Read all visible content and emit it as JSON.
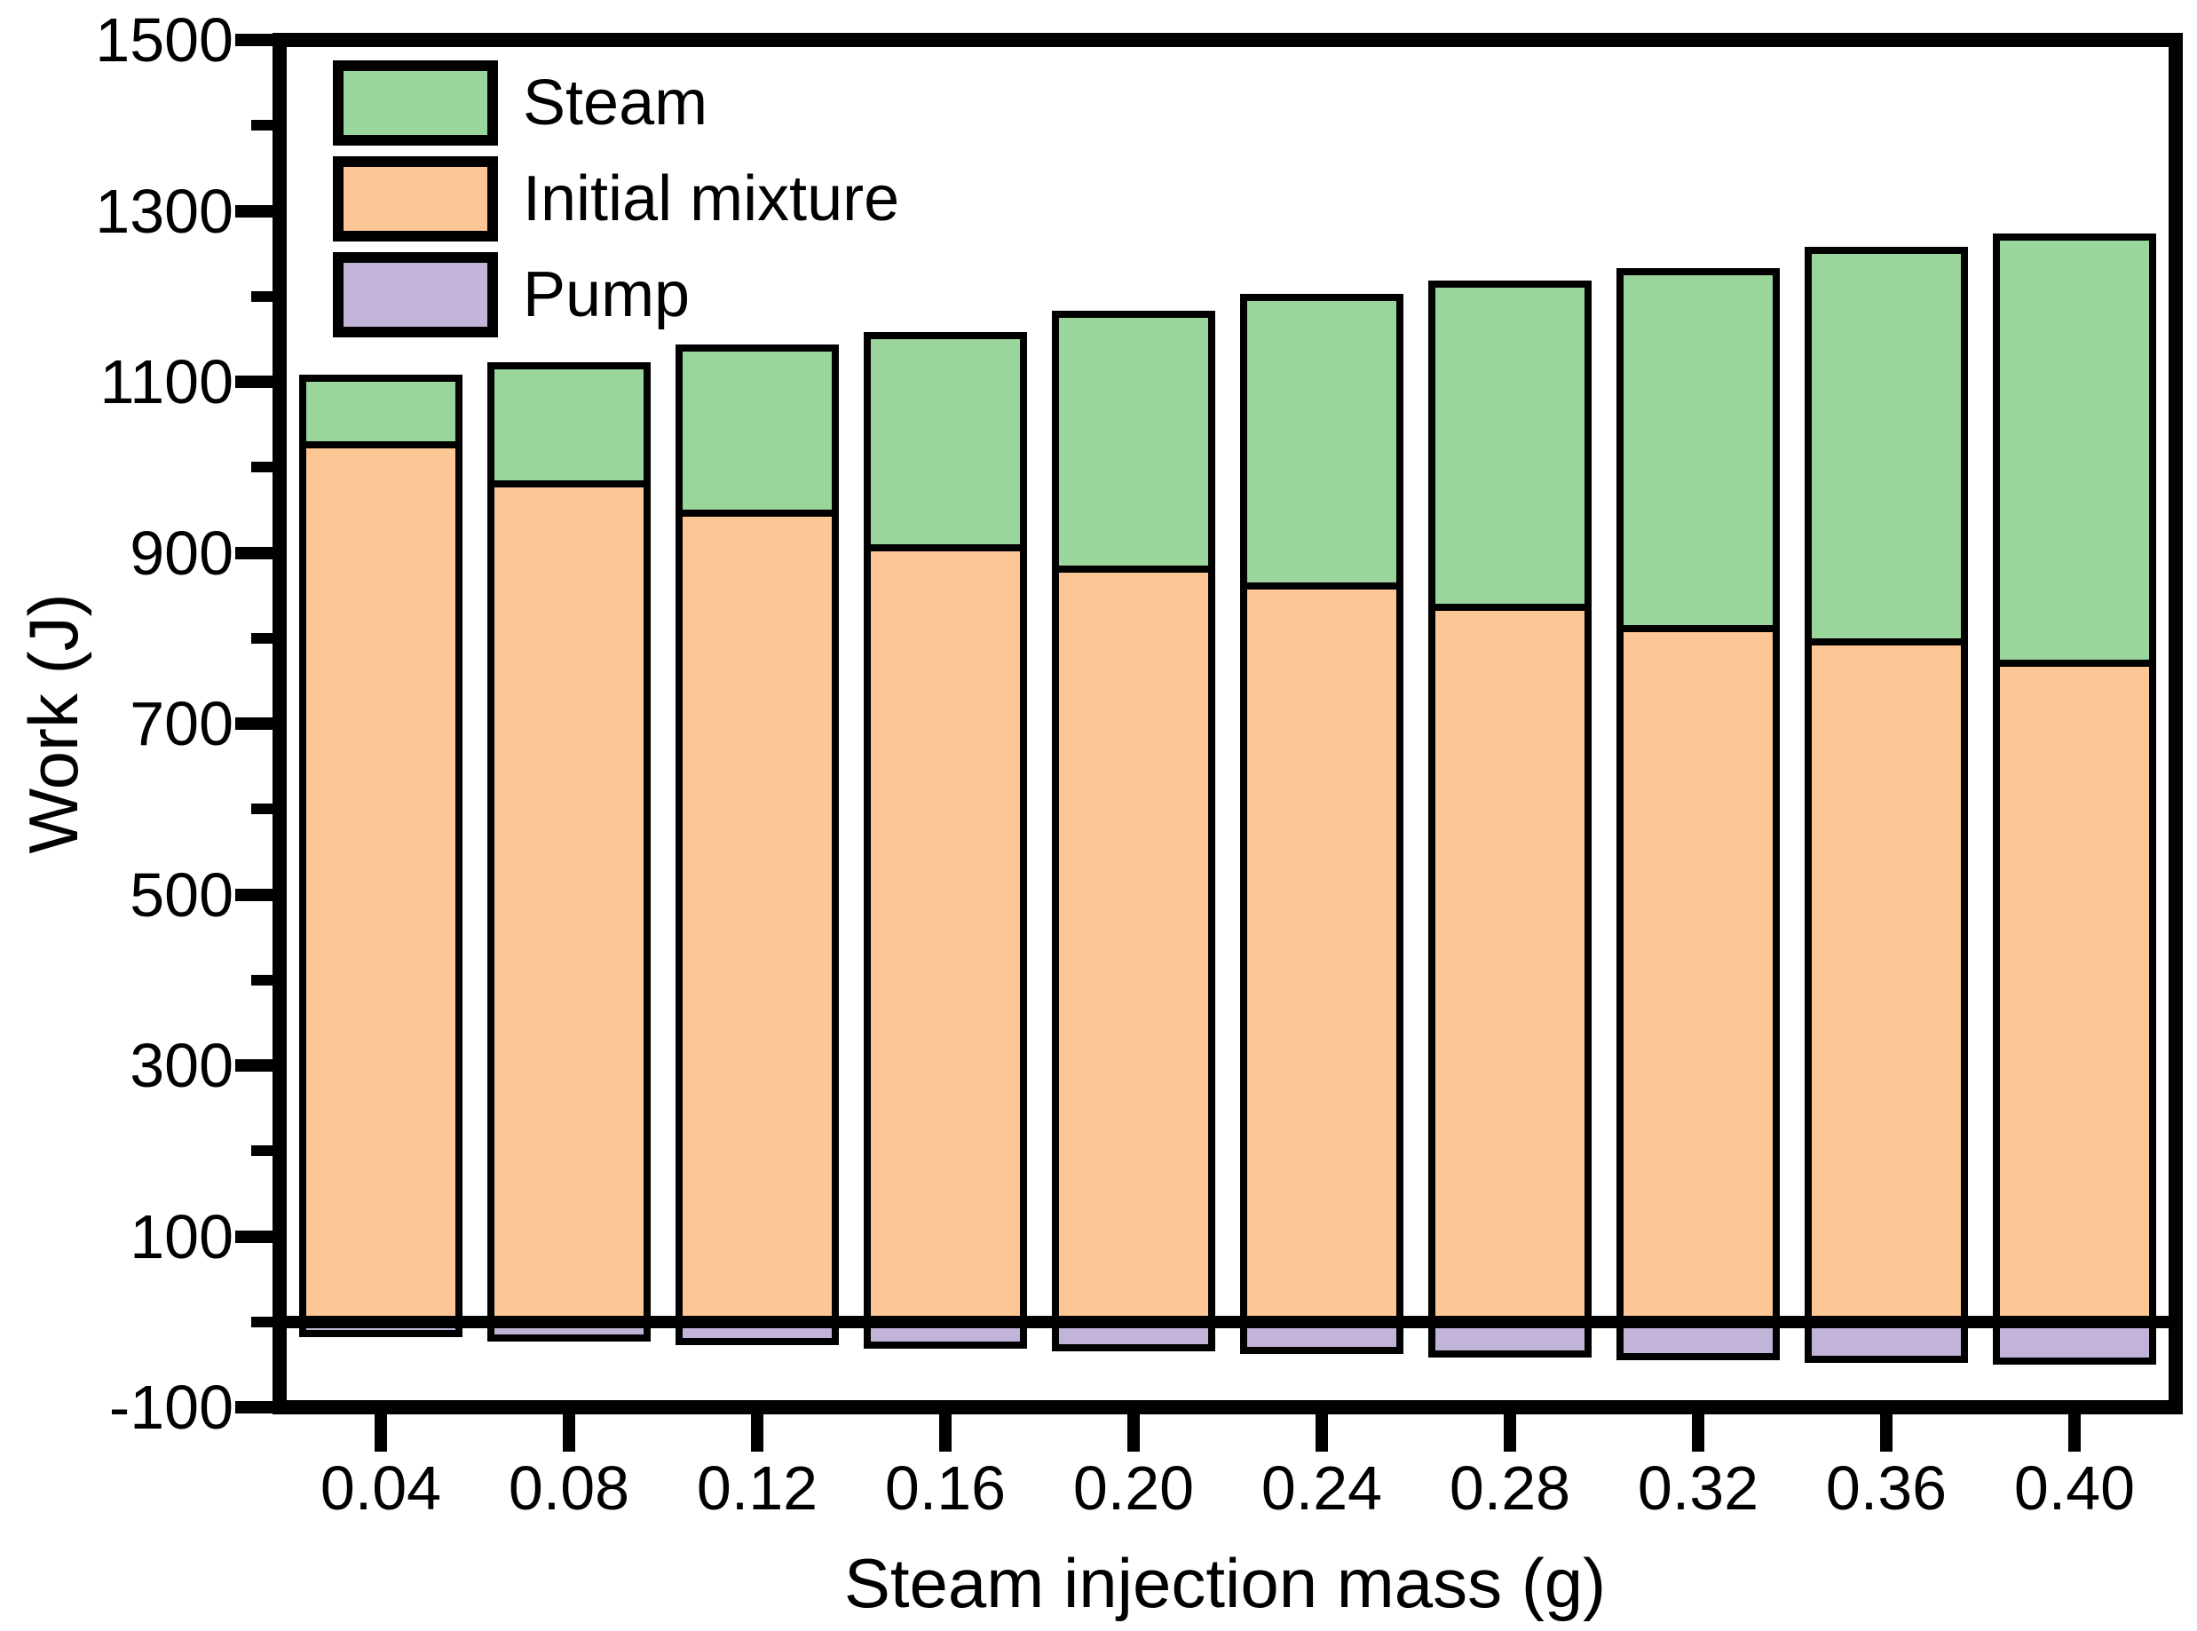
{
  "chart_data": {
    "type": "bar",
    "stacked": true,
    "title": "",
    "xlabel": "Steam injection mass (g)",
    "ylabel": "Work (J)",
    "categories": [
      "0.04",
      "0.08",
      "0.12",
      "0.16",
      "0.20",
      "0.24",
      "0.28",
      "0.32",
      "0.36",
      "0.40"
    ],
    "series": [
      {
        "name": "Steam",
        "color": "#9AD69B",
        "role": "positive-top",
        "values": [
          70,
          130,
          185,
          240,
          290,
          330,
          370,
          410,
          450,
          490
        ]
      },
      {
        "name": "Initial mixture",
        "color": "#FCC795",
        "role": "positive-base",
        "values": [
          1030,
          985,
          950,
          910,
          885,
          865,
          840,
          815,
          800,
          775
        ]
      },
      {
        "name": "Pump",
        "color": "#C2B4D8",
        "role": "negative",
        "values": [
          -10,
          -15,
          -19,
          -23,
          -26,
          -29,
          -34,
          -37,
          -40,
          -42
        ]
      }
    ],
    "totals": [
      1100,
      1115,
      1135,
      1150,
      1175,
      1195,
      1210,
      1225,
      1250,
      1265
    ],
    "ylim": [
      -100,
      1500
    ],
    "y_tick_labels": [
      "1500",
      "1300",
      "1100",
      "900",
      "700",
      "500",
      "300",
      "100",
      "-100"
    ],
    "y_minor_ticks": [
      1400,
      1200,
      1000,
      800,
      600,
      400,
      200,
      0
    ],
    "grid": false,
    "legend_position": "top-left",
    "bar_outline_color": "#000000",
    "axis_color": "#000000"
  }
}
